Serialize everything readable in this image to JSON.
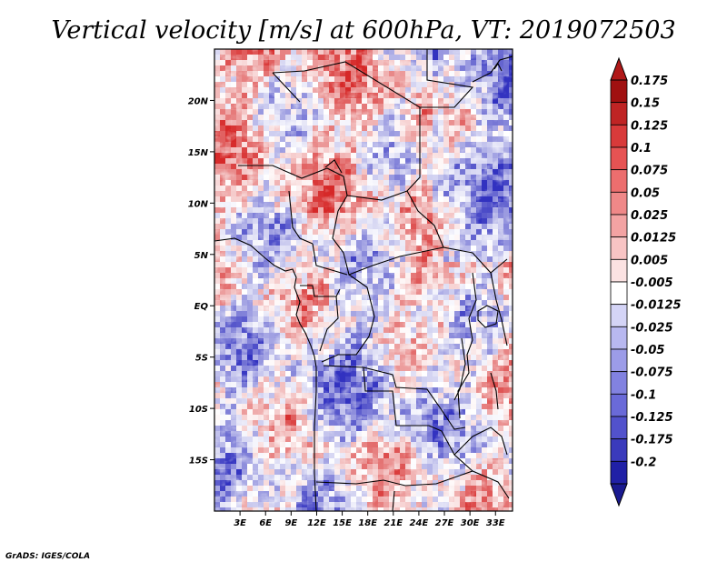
{
  "chart_data": {
    "type": "heatmap",
    "title": "Vertical velocity [m/s] at 600hPa, VT: 2019072503",
    "variable": "Vertical velocity",
    "units": "m/s",
    "level": "600hPa",
    "valid_time": "2019072503",
    "x_ticks": [
      "3E",
      "6E",
      "9E",
      "12E",
      "15E",
      "18E",
      "21E",
      "24E",
      "27E",
      "30E",
      "33E"
    ],
    "x_tick_values": [
      3,
      6,
      9,
      12,
      15,
      18,
      21,
      24,
      27,
      30,
      33
    ],
    "y_ticks": [
      "20N",
      "15N",
      "10N",
      "5N",
      "EQ",
      "5S",
      "10S",
      "15S"
    ],
    "y_tick_values": [
      20,
      15,
      10,
      5,
      0,
      -5,
      -10,
      -15
    ],
    "xlim": [
      0,
      35
    ],
    "ylim": [
      -20,
      25
    ],
    "colorbar_labels": [
      "0.175",
      "0.15",
      "0.125",
      "0.1",
      "0.075",
      "0.05",
      "0.025",
      "0.0125",
      "0.005",
      "-0.005",
      "-0.0125",
      "-0.025",
      "-0.05",
      "-0.075",
      "-0.1",
      "-0.125",
      "-0.175",
      "-0.2"
    ],
    "colorbar_values": [
      0.175,
      0.15,
      0.125,
      0.1,
      0.075,
      0.05,
      0.025,
      0.0125,
      0.005,
      -0.005,
      -0.0125,
      -0.025,
      -0.05,
      -0.075,
      -0.1,
      -0.125,
      -0.175,
      -0.2
    ],
    "colorbar_colors": [
      "#a01010",
      "#bf2424",
      "#d83a3a",
      "#e65353",
      "#ec6e6e",
      "#ef8888",
      "#f3a3a3",
      "#f8c4c4",
      "#fbe2e2",
      "#ffffff",
      "#d4d4f6",
      "#b8b8f0",
      "#9c9ce8",
      "#8282e0",
      "#6a6ad8",
      "#5252cc",
      "#3a3abc",
      "#2020a6"
    ],
    "colorbar_under_color": "#1a1a90",
    "colorbar_over_color": "#b01818"
  },
  "credit": "GrADS: IGES/COLA"
}
